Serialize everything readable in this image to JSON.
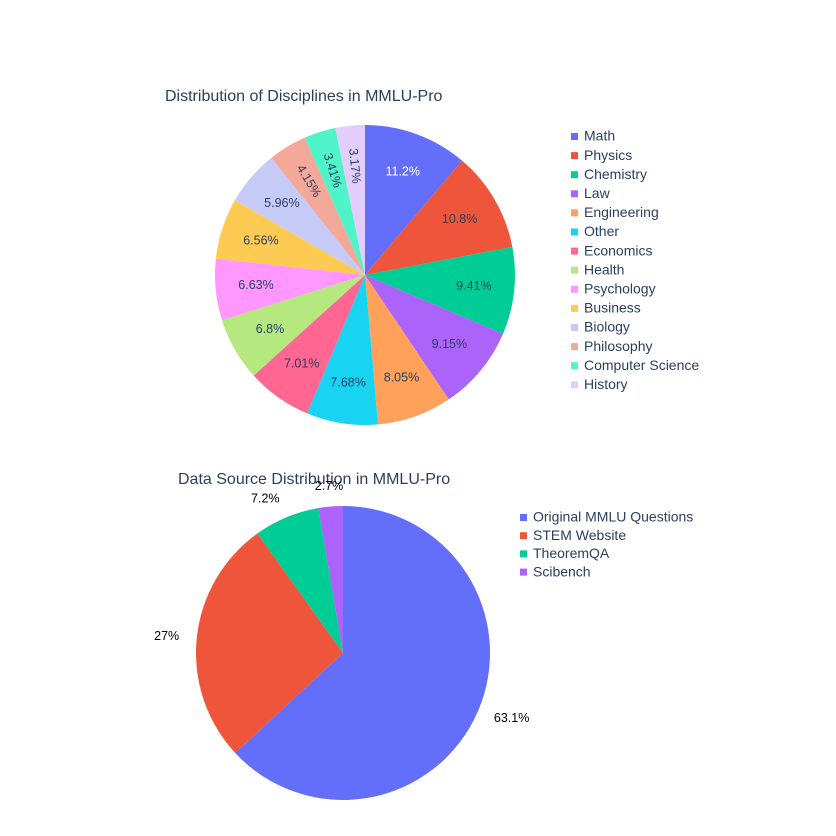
{
  "chart_data": [
    {
      "type": "pie",
      "title": "Distribution of Disciplines in MMLU-Pro",
      "categories": [
        "Math",
        "Physics",
        "Chemistry",
        "Law",
        "Engineering",
        "Other",
        "Economics",
        "Health",
        "Psychology",
        "Business",
        "Biology",
        "Philosophy",
        "Computer Science",
        "History"
      ],
      "values": [
        11.2,
        10.8,
        9.41,
        9.15,
        8.05,
        7.68,
        7.01,
        6.8,
        6.63,
        6.56,
        5.96,
        4.15,
        3.41,
        3.17
      ],
      "labels": [
        "11.2%",
        "10.8%",
        "9.41%",
        "9.15%",
        "8.05%",
        "7.68%",
        "7.01%",
        "6.8%",
        "6.63%",
        "6.56%",
        "5.96%",
        "4.15%",
        "3.41%",
        "3.17%"
      ],
      "colors": [
        "#636efa",
        "#ef553b",
        "#00cc96",
        "#ab63fa",
        "#ffa15a",
        "#19d3f3",
        "#ff6692",
        "#b6e880",
        "#ff97ff",
        "#fecb52",
        "#c6caf7",
        "#f4a89a",
        "#4ff5c9",
        "#e2cdfb"
      ],
      "direction": "clockwise",
      "start_angle": "top",
      "legend": "right"
    },
    {
      "type": "pie",
      "title": "Data Source Distribution in MMLU-Pro",
      "categories": [
        "Original MMLU Questions",
        "STEM Website",
        "TheoremQA",
        "Scibench"
      ],
      "values": [
        63.1,
        27,
        7.2,
        2.7
      ],
      "labels": [
        "63.1%",
        "27%",
        "7.2%",
        "2.7%"
      ],
      "colors": [
        "#636efa",
        "#ef553b",
        "#00cc96",
        "#ab63fa"
      ],
      "direction": "clockwise",
      "start_angle": "top",
      "legend": "right"
    }
  ]
}
